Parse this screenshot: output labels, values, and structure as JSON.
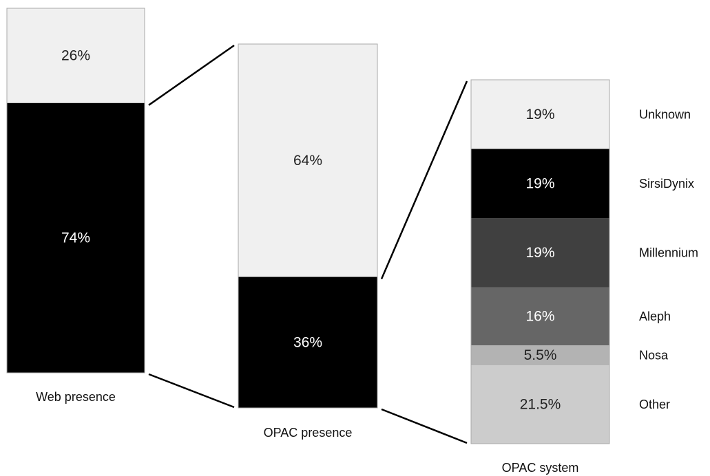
{
  "chart_data": {
    "type": "bar",
    "charts": [
      {
        "label": "Web presence",
        "segments": [
          {
            "value": 26,
            "value_label": "26%",
            "color": "#f0f0f0"
          },
          {
            "value": 74,
            "value_label": "74%",
            "color": "#000000"
          }
        ]
      },
      {
        "label": "OPAC presence",
        "segments": [
          {
            "value": 64,
            "value_label": "64%",
            "color": "#f0f0f0"
          },
          {
            "value": 36,
            "value_label": "36%",
            "color": "#000000"
          }
        ]
      },
      {
        "label": "OPAC system",
        "segments": [
          {
            "name": "Unknown",
            "value": 19,
            "value_label": "19%",
            "color": "#f0f0f0"
          },
          {
            "name": "SirsiDynix",
            "value": 19,
            "value_label": "19%",
            "color": "#000000"
          },
          {
            "name": "Millennium",
            "value": 19,
            "value_label": "19%",
            "color": "#404040"
          },
          {
            "name": "Aleph",
            "value": 16,
            "value_label": "16%",
            "color": "#666666"
          },
          {
            "name": "Nosa",
            "value": 5.5,
            "value_label": "5.5%",
            "color": "#b3b3b3"
          },
          {
            "name": "Other",
            "value": 21.5,
            "value_label": "21.5%",
            "color": "#cccccc"
          }
        ]
      }
    ],
    "connections": [
      {
        "from_chart": 0,
        "to_chart": 1,
        "from_segment": 1
      },
      {
        "from_chart": 1,
        "to_chart": 2,
        "from_segment": 1
      }
    ]
  }
}
